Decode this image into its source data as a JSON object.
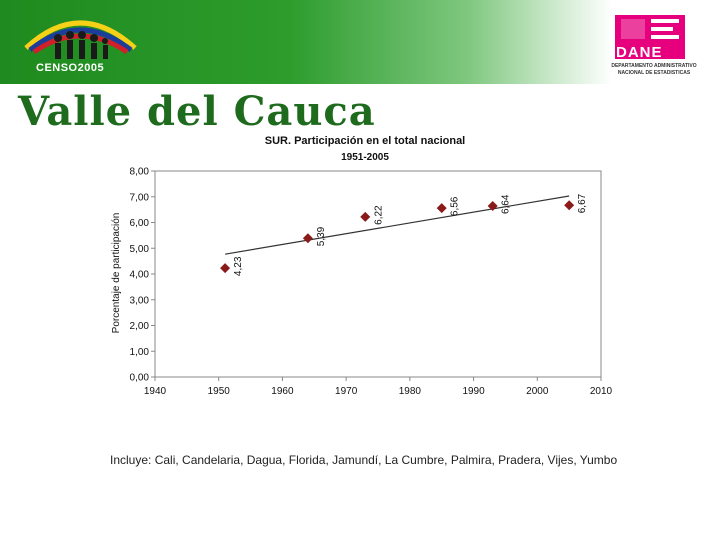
{
  "header": {
    "census_label": "CENSO2005",
    "dane_label": "DANE",
    "dane_subtitle_1": "DEPARTAMENTO ADMINISTRATIVO",
    "dane_subtitle_2": "NACIONAL DE ESTADISTICAS"
  },
  "page_title": "Valle del Cauca",
  "chart_data": {
    "type": "scatter",
    "title": "SUR. Participación en el total nacional",
    "subtitle": "1951-2005",
    "xlabel": "",
    "ylabel": "Porcentaje de participación",
    "xlim": [
      1940,
      2010
    ],
    "ylim": [
      0,
      8
    ],
    "x_ticks": [
      1940,
      1950,
      1960,
      1970,
      1980,
      1990,
      2000,
      2010
    ],
    "y_ticks": [
      "0,00",
      "1,00",
      "2,00",
      "3,00",
      "4,00",
      "5,00",
      "6,00",
      "7,00",
      "8,00"
    ],
    "points": [
      {
        "x": 1951,
        "y": 4.23,
        "label": "4,23"
      },
      {
        "x": 1964,
        "y": 5.39,
        "label": "5,39"
      },
      {
        "x": 1973,
        "y": 6.22,
        "label": "6,22"
      },
      {
        "x": 1985,
        "y": 6.56,
        "label": "6,56"
      },
      {
        "x": 1993,
        "y": 6.64,
        "label": "6,64"
      },
      {
        "x": 2005,
        "y": 6.67,
        "label": "6,67"
      }
    ],
    "trendline": {
      "x": [
        1951,
        2005
      ],
      "y": [
        4.77,
        7.03
      ]
    },
    "grid": false,
    "marker_color": "#8b1a1a",
    "trend_color": "#333333"
  },
  "footnote": "Incluye: Cali, Candelaria, Dagua, Florida, Jamundí, La Cumbre, Palmira, Pradera, Vijes, Yumbo"
}
